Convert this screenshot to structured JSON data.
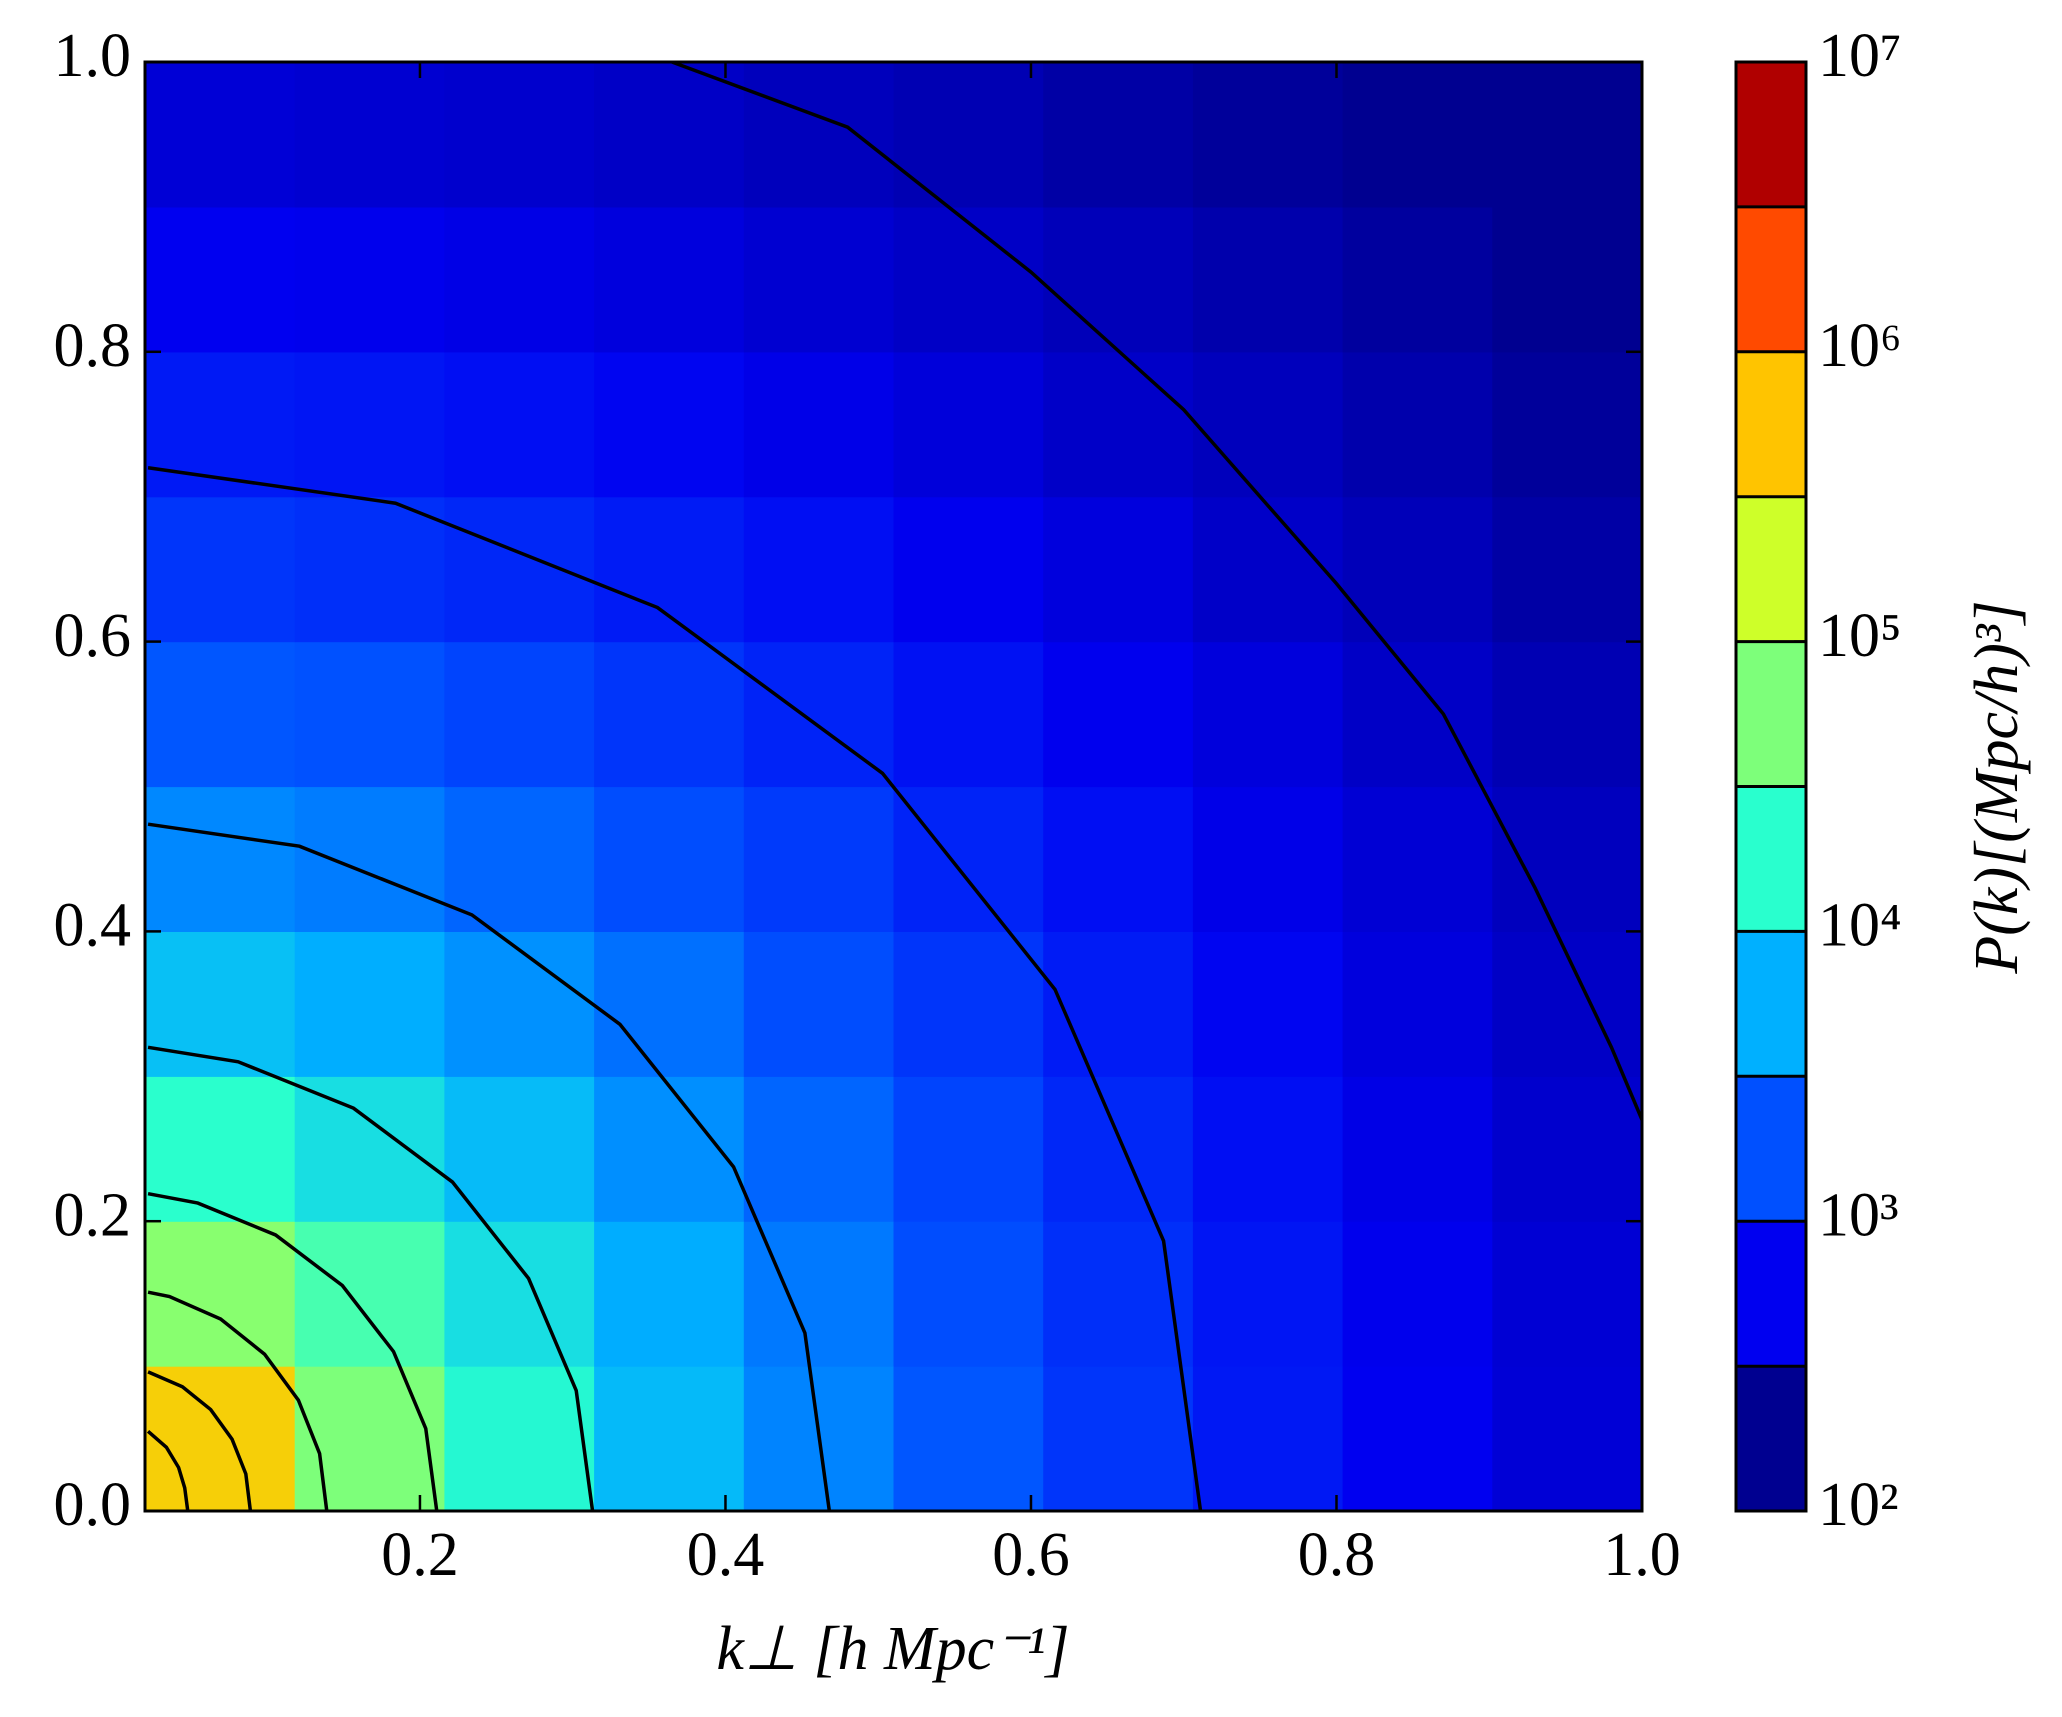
{
  "chart_data": {
    "type": "heatmap",
    "xlabel": "k⊥ [h Mpc⁻¹]",
    "x": [
      0.069,
      0.167,
      0.265,
      0.363,
      0.461,
      0.559,
      0.657,
      0.755,
      0.853,
      0.951
    ],
    "y": [
      0.05,
      0.15,
      0.25,
      0.35,
      0.45,
      0.55,
      0.65,
      0.75,
      0.85,
      0.95
    ],
    "z": [
      [
        450000,
        56000,
        16000,
        6500,
        3300,
        1900,
        1200,
        790,
        560,
        410
      ],
      [
        66000,
        27000,
        11000,
        5400,
        2900,
        1700,
        1100,
        760,
        540,
        400
      ],
      [
        18000,
        11000,
        6600,
        3800,
        2300,
        1500,
        980,
        690,
        500,
        370
      ],
      [
        7100,
        5500,
        3900,
        2600,
        1700,
        1200,
        830,
        600,
        450,
        340
      ],
      [
        3500,
        3000,
        2300,
        1700,
        1300,
        930,
        690,
        510,
        400,
        310
      ],
      [
        1900,
        1800,
        1500,
        1200,
        930,
        720,
        550,
        440,
        340,
        270
      ],
      [
        1200,
        1100,
        980,
        830,
        690,
        550,
        450,
        350,
        290,
        230
      ],
      [
        810,
        760,
        690,
        600,
        510,
        430,
        350,
        300,
        250,
        200
      ],
      [
        560,
        540,
        500,
        450,
        390,
        340,
        290,
        250,
        210,
        170
      ],
      [
        410,
        390,
        370,
        340,
        300,
        270,
        230,
        200,
        170,
        150
      ]
    ],
    "xlim": [
      0.02,
      1
    ],
    "ylim": [
      0,
      1
    ],
    "xticks": [
      0.2,
      0.4,
      0.6,
      0.8,
      {
        "value": 1,
        "label": "1.0"
      }
    ],
    "yticks": [
      {
        "value": 0,
        "label": "0.0"
      },
      0.2,
      0.4,
      0.6,
      0.8,
      {
        "value": 1,
        "label": "1.0"
      }
    ],
    "contour_color": "#000000",
    "contours": [
      {
        "x": [
          0.022,
          0.034,
          0.042,
          0.046,
          0.048
        ],
        "y": [
          0.055,
          0.044,
          0.03,
          0.016,
          0
        ]
      },
      {
        "x": [
          0.022,
          0.0445,
          0.063,
          0.077,
          0.086,
          0.089
        ],
        "y": [
          0.096,
          0.0857,
          0.07,
          0.0495,
          0.0256,
          0
        ]
      },
      {
        "x": [
          0.022,
          0.036,
          0.0695,
          0.0983,
          0.1204,
          0.1343,
          0.139
        ],
        "y": [
          0.151,
          0.148,
          0.1325,
          0.1082,
          0.0765,
          0.0396,
          0
        ]
      },
      {
        "x": [
          0.022,
          0.0546,
          0.1055,
          0.1492,
          0.1827,
          0.2038,
          0.211
        ],
        "y": [
          0.219,
          0.2125,
          0.1905,
          0.1556,
          0.11,
          0.0569,
          0
        ]
      },
      {
        "x": [
          0.022,
          0.081,
          0.1565,
          0.2213,
          0.2711,
          0.3023,
          0.313
        ],
        "y": [
          0.32,
          0.31,
          0.278,
          0.227,
          0.1605,
          0.0831,
          0
        ]
      },
      {
        "x": [
          0.022,
          0.1211,
          0.234,
          0.3309,
          0.4053,
          0.452,
          0.468
        ],
        "y": [
          0.474,
          0.4588,
          0.4114,
          0.3359,
          0.2375,
          0.1229,
          0
        ]
      },
      {
        "x": [
          0.022,
          0.184,
          0.3555,
          0.5028,
          0.6157,
          0.6868,
          0.711
        ],
        "y": [
          0.72,
          0.6955,
          0.6235,
          0.5091,
          0.36,
          0.1864,
          0
        ]
      },
      {
        "x": [
          0.365,
          0.48,
          0.6,
          0.7,
          0.8,
          0.87,
          0.93,
          0.98,
          1.0
        ],
        "y": [
          1.0,
          0.955,
          0.855,
          0.76,
          0.64,
          0.55,
          0.43,
          0.32,
          0.27
        ]
      }
    ],
    "colorbar": {
      "label": "P(k)[(Mpc/h)³]",
      "scale": "log",
      "lim": [
        100,
        10000000
      ],
      "ticks": [
        {
          "value": 100,
          "label": "10²"
        },
        {
          "value": 1000,
          "label": "10³"
        },
        {
          "value": 10000,
          "label": "10⁴"
        },
        {
          "value": 100000,
          "label": "10⁵"
        },
        {
          "value": 1000000,
          "label": "10⁶"
        },
        {
          "value": 10000000,
          "label": "10⁷"
        }
      ],
      "levels": [
        100,
        316,
        1000,
        3162,
        10000,
        31623,
        100000,
        316228,
        1000000,
        3162278,
        10000000
      ],
      "colors": [
        "#000090",
        "#0000f0",
        "#0050ff",
        "#00b0ff",
        "#29ffce",
        "#7dff7a",
        "#ceff29",
        "#ffc400",
        "#ff4a00",
        "#b00000"
      ]
    }
  }
}
